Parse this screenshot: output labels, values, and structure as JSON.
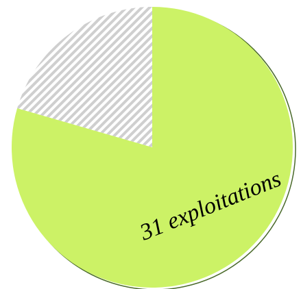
{
  "chart_data": {
    "type": "pie",
    "values": [
      31,
      8
    ],
    "value_labels": [
      "31 exploitations",
      null
    ],
    "colors": [
      "#ccf266",
      "#cfcfcf"
    ],
    "hatched": [
      false,
      true
    ],
    "outline_color": "#4a6a2a"
  }
}
